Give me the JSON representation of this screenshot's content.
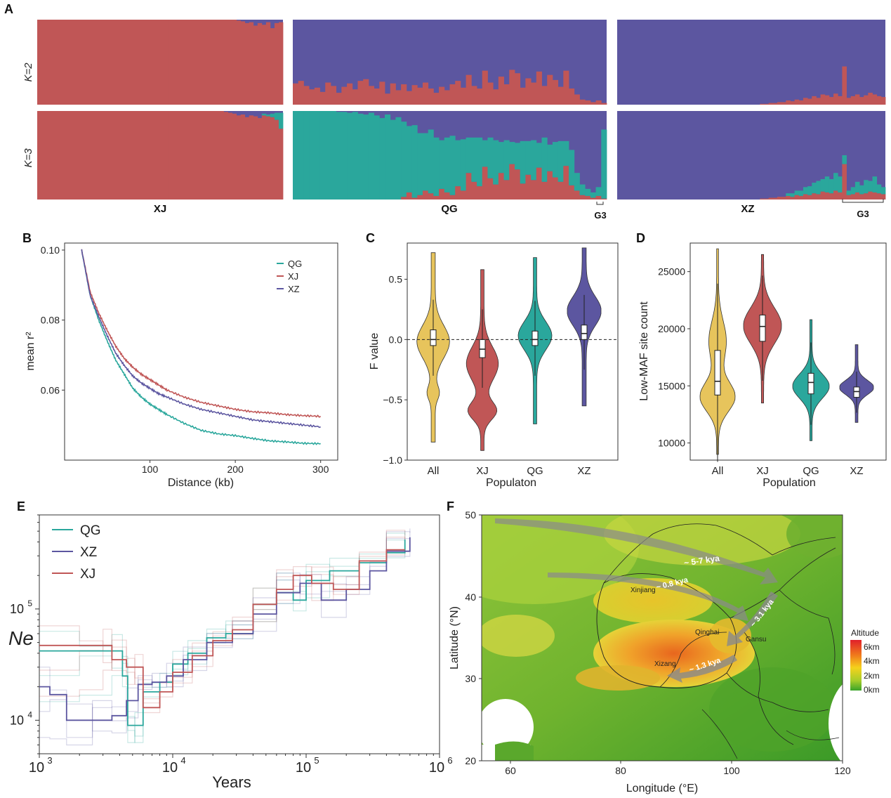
{
  "panels": {
    "A": {
      "letter": "A",
      "row_labels": [
        "K=2",
        "K=3"
      ],
      "pop_labels": [
        "XJ",
        "QG",
        "XZ"
      ],
      "sub_labels": [
        "G3",
        "G3"
      ],
      "colors": {
        "red": "#c05656",
        "blue": "#5c56a0",
        "teal": "#2aa79c"
      },
      "n_individuals": [
        58,
        58,
        62
      ],
      "k2_red_fraction": {
        "XJ": [
          1,
          1,
          1,
          1,
          1,
          1,
          1,
          1,
          1,
          1,
          1,
          1,
          1,
          1,
          1,
          1,
          1,
          1,
          1,
          1,
          1,
          1,
          1,
          1,
          1,
          1,
          1,
          1,
          1,
          1,
          1,
          1,
          1,
          1,
          1,
          1,
          1,
          1,
          1,
          1,
          1,
          1,
          1,
          1,
          1,
          1,
          1,
          0.99,
          0.98,
          0.96,
          0.97,
          0.93,
          0.96,
          0.94,
          0.97,
          0.9,
          0.96,
          0.97
        ],
        "QG": [
          0.25,
          0.28,
          0.22,
          0.18,
          0.2,
          0.15,
          0.26,
          0.22,
          0.14,
          0.21,
          0.25,
          0.18,
          0.28,
          0.3,
          0.22,
          0.19,
          0.27,
          0.13,
          0.25,
          0.17,
          0.24,
          0.16,
          0.23,
          0.2,
          0.26,
          0.19,
          0.14,
          0.21,
          0.17,
          0.24,
          0.28,
          0.2,
          0.35,
          0.22,
          0.19,
          0.4,
          0.26,
          0.18,
          0.33,
          0.24,
          0.41,
          0.37,
          0.2,
          0.31,
          0.26,
          0.39,
          0.22,
          0.35,
          0.29,
          0.21,
          0.4,
          0.19,
          0.12,
          0.06,
          0.05,
          0.03,
          0.05,
          0.02
        ],
        "XZ": [
          0,
          0,
          0,
          0,
          0,
          0,
          0,
          0,
          0,
          0,
          0,
          0,
          0,
          0,
          0,
          0,
          0,
          0,
          0,
          0,
          0,
          0,
          0,
          0,
          0,
          0,
          0,
          0,
          0,
          0,
          0,
          0,
          0,
          0.01,
          0.01,
          0.02,
          0.02,
          0.03,
          0.03,
          0.05,
          0.04,
          0.06,
          0.05,
          0.08,
          0.07,
          0.1,
          0.08,
          0.12,
          0.11,
          0.09,
          0.13,
          0.1,
          0.45,
          0.08,
          0.1,
          0.12,
          0.09,
          0.11,
          0.14,
          0.12,
          0.1,
          0.09
        ]
      },
      "k3_fractions": {
        "XJ": {
          "red": [
            1,
            1,
            1,
            1,
            1,
            1,
            1,
            1,
            1,
            1,
            1,
            1,
            1,
            1,
            1,
            1,
            1,
            1,
            1,
            1,
            1,
            1,
            1,
            1,
            1,
            1,
            1,
            1,
            1,
            1,
            1,
            1,
            1,
            1,
            1,
            1,
            1,
            1,
            1,
            1,
            1,
            1,
            1,
            1,
            0.99,
            0.98,
            0.97,
            0.95,
            0.96,
            0.93,
            0.95,
            0.94,
            0.92,
            0.95,
            0.94,
            0.93,
            0.9,
            0.8
          ],
          "teal": [
            0,
            0,
            0,
            0,
            0,
            0,
            0,
            0,
            0,
            0,
            0,
            0,
            0,
            0,
            0,
            0,
            0,
            0,
            0,
            0,
            0,
            0,
            0,
            0,
            0,
            0,
            0,
            0,
            0,
            0,
            0,
            0,
            0,
            0,
            0,
            0,
            0,
            0,
            0,
            0,
            0,
            0,
            0,
            0,
            0,
            0,
            0,
            0,
            0,
            0,
            0,
            0,
            0,
            0.02,
            0.02,
            0.04,
            0.08,
            0.18
          ]
        },
        "QG": {
          "red": [
            0,
            0,
            0,
            0,
            0,
            0,
            0,
            0,
            0,
            0,
            0,
            0,
            0,
            0,
            0,
            0,
            0,
            0,
            0,
            0,
            0.03,
            0.08,
            0.02,
            0.05,
            0.1,
            0.07,
            0.04,
            0.12,
            0.08,
            0.05,
            0.15,
            0.1,
            0.3,
            0.2,
            0.15,
            0.37,
            0.24,
            0.17,
            0.3,
            0.22,
            0.4,
            0.34,
            0.18,
            0.28,
            0.22,
            0.36,
            0.2,
            0.32,
            0.25,
            0.2,
            0.38,
            0.16,
            0.1,
            0.05,
            0.04,
            0.02,
            0.04,
            0.01
          ],
          "teal": [
            1,
            1,
            1,
            1,
            1,
            1,
            1,
            1,
            0.99,
            0.99,
            0.98,
            0.99,
            0.97,
            0.96,
            0.98,
            0.95,
            0.92,
            0.96,
            0.9,
            0.93,
            0.85,
            0.75,
            0.82,
            0.7,
            0.65,
            0.72,
            0.66,
            0.55,
            0.62,
            0.67,
            0.52,
            0.58,
            0.4,
            0.5,
            0.55,
            0.3,
            0.46,
            0.5,
            0.35,
            0.45,
            0.25,
            0.3,
            0.48,
            0.38,
            0.45,
            0.28,
            0.5,
            0.3,
            0.4,
            0.46,
            0.28,
            0.4,
            0.2,
            0.12,
            0.08,
            0.06,
            0.1,
            0.78
          ]
        },
        "XZ": {
          "red": [
            0,
            0,
            0,
            0,
            0,
            0,
            0,
            0,
            0,
            0,
            0,
            0,
            0,
            0,
            0,
            0,
            0,
            0,
            0,
            0,
            0,
            0,
            0,
            0,
            0,
            0,
            0,
            0,
            0,
            0,
            0,
            0,
            0,
            0.01,
            0.01,
            0.02,
            0.02,
            0.03,
            0.03,
            0.04,
            0.03,
            0.05,
            0.04,
            0.06,
            0.05,
            0.07,
            0.06,
            0.09,
            0.08,
            0.07,
            0.1,
            0.08,
            0.4,
            0.05,
            0.06,
            0.08,
            0.06,
            0.07,
            0.09,
            0.08,
            0.07,
            0.06
          ],
          "teal": [
            0,
            0,
            0,
            0,
            0,
            0,
            0,
            0,
            0,
            0,
            0,
            0,
            0,
            0,
            0,
            0,
            0,
            0,
            0,
            0,
            0,
            0,
            0,
            0,
            0,
            0,
            0,
            0,
            0,
            0,
            0,
            0,
            0,
            0,
            0,
            0,
            0,
            0,
            0,
            0.03,
            0.04,
            0.05,
            0.06,
            0.08,
            0.1,
            0.12,
            0.15,
            0.14,
            0.18,
            0.16,
            0.2,
            0.18,
            0.1,
            0.05,
            0.08,
            0.12,
            0.1,
            0.15,
            0.12,
            0.18,
            0.1,
            0.08
          ]
        }
      }
    },
    "B": {
      "letter": "B",
      "chart_data": {
        "type": "line",
        "xlabel": "Distance (kb)",
        "ylabel": "mean r²",
        "xticks": [
          100,
          200,
          300
        ],
        "yticks": [
          0.06,
          0.08,
          0.1
        ],
        "xlim": [
          0,
          320
        ],
        "ylim": [
          0.04,
          0.102
        ],
        "legend": "top-right",
        "series": [
          {
            "name": "QG",
            "color": "#2aa79c",
            "x": [
              20,
              30,
              40,
              50,
              60,
              70,
              80,
              90,
              100,
              110,
              120,
              140,
              160,
              180,
              200,
              220,
              240,
              260,
              280,
              300
            ],
            "y": [
              0.1,
              0.087,
              0.08,
              0.074,
              0.0685,
              0.0645,
              0.0605,
              0.058,
              0.056,
              0.0545,
              0.053,
              0.0505,
              0.0485,
              0.0475,
              0.047,
              0.0462,
              0.0455,
              0.0452,
              0.0448,
              0.0447
            ]
          },
          {
            "name": "XJ",
            "color": "#c05656",
            "x": [
              20,
              30,
              40,
              50,
              60,
              70,
              80,
              90,
              100,
              110,
              120,
              140,
              160,
              180,
              200,
              220,
              240,
              260,
              280,
              300
            ],
            "y": [
              0.1,
              0.088,
              0.082,
              0.077,
              0.0725,
              0.069,
              0.0665,
              0.0645,
              0.063,
              0.0615,
              0.06,
              0.058,
              0.0565,
              0.0555,
              0.0545,
              0.0538,
              0.0535,
              0.053,
              0.0527,
              0.0525
            ]
          },
          {
            "name": "XZ",
            "color": "#5c56a0",
            "x": [
              20,
              30,
              40,
              50,
              60,
              70,
              80,
              90,
              100,
              110,
              120,
              140,
              160,
              180,
              200,
              220,
              240,
              260,
              280,
              300
            ],
            "y": [
              0.1,
              0.087,
              0.081,
              0.0755,
              0.0705,
              0.067,
              0.064,
              0.062,
              0.0605,
              0.059,
              0.058,
              0.056,
              0.0545,
              0.0535,
              0.0525,
              0.0515,
              0.051,
              0.0505,
              0.05,
              0.0495
            ]
          }
        ]
      }
    },
    "C": {
      "letter": "C",
      "chart_data": {
        "type": "violin",
        "xlabel": "Populaton",
        "ylabel": "F value",
        "categories": [
          "All",
          "XJ",
          "QG",
          "XZ"
        ],
        "yticks": [
          -1.0,
          -0.5,
          0.0,
          0.5
        ],
        "ytick_labels": [
          "−1.0",
          "−0.5",
          "0.0",
          "0.5"
        ],
        "ylim": [
          -1.0,
          0.8
        ],
        "reference_line": 0.0,
        "colors": [
          "#e7c45c",
          "#c05656",
          "#2aa79c",
          "#5c56a0"
        ],
        "box": [
          {
            "q1": -0.05,
            "median": 0.0,
            "q3": 0.08
          },
          {
            "q1": -0.15,
            "median": -0.08,
            "q3": 0.0
          },
          {
            "q1": -0.05,
            "median": 0.0,
            "q3": 0.07
          },
          {
            "q1": 0.0,
            "median": 0.05,
            "q3": 0.12
          }
        ]
      }
    },
    "D": {
      "letter": "D",
      "chart_data": {
        "type": "violin",
        "xlabel": "Population",
        "ylabel": "Low-MAF site count",
        "categories": [
          "All",
          "XJ",
          "QG",
          "XZ"
        ],
        "yticks": [
          10000,
          15000,
          20000,
          25000
        ],
        "ylim": [
          8500,
          27500
        ],
        "colors": [
          "#e7c45c",
          "#c05656",
          "#2aa79c",
          "#5c56a0"
        ],
        "box": [
          {
            "q1": 14200,
            "median": 15400,
            "q3": 18100
          },
          {
            "q1": 18900,
            "median": 20200,
            "q3": 21200
          },
          {
            "q1": 14300,
            "median": 15300,
            "q3": 16100
          },
          {
            "q1": 14000,
            "median": 14500,
            "q3": 14900
          }
        ]
      }
    },
    "E": {
      "letter": "E",
      "chart_data": {
        "type": "line",
        "xlabel": "Years",
        "ylabel": "Ne",
        "xscale": "log",
        "yscale": "log",
        "xlim": [
          1000,
          1000000
        ],
        "ylim": [
          5000,
          700000
        ],
        "xtick_bases": [
          "10",
          "10",
          "10",
          "10"
        ],
        "xtick_exps": [
          "3",
          "4",
          "5",
          "6"
        ],
        "ytick_bases": [
          "10",
          "10"
        ],
        "ytick_exps": [
          "4",
          "5"
        ],
        "legend": "top-left",
        "series": [
          {
            "name": "QG",
            "color": "#2aa79c",
            "x": [
              1000,
              2000,
              3500,
              4200,
              4600,
              5200,
              6000,
              8000,
              10000,
              13000,
              18000,
              25000,
              40000,
              60000,
              80000,
              100000,
              150000,
              250000,
              400000,
              550000
            ],
            "y": [
              42000,
              42000,
              42000,
              25000,
              9000,
              9000,
              18000,
              22000,
              32000,
              40000,
              55000,
              60000,
              110000,
              140000,
              120000,
              180000,
              220000,
              260000,
              320000,
              420000
            ]
          },
          {
            "name": "XZ",
            "color": "#5c56a0",
            "x": [
              1000,
              1200,
              1600,
              2500,
              3500,
              4500,
              5500,
              7000,
              9000,
              12000,
              18000,
              28000,
              40000,
              60000,
              90000,
              130000,
              200000,
              300000,
              400000,
              600000
            ],
            "y": [
              20000,
              17000,
              10000,
              10000,
              11000,
              15000,
              21000,
              22000,
              25000,
              35000,
              50000,
              60000,
              90000,
              140000,
              170000,
              120000,
              150000,
              220000,
              330000,
              440000
            ]
          },
          {
            "name": "XJ",
            "color": "#c05656",
            "x": [
              1000,
              2000,
              3000,
              3500,
              4500,
              5200,
              6000,
              8000,
              10000,
              14000,
              20000,
              28000,
              40000,
              60000,
              80000,
              110000,
              160000,
              250000,
              400000,
              550000
            ],
            "y": [
              47000,
              47000,
              47000,
              35000,
              30000,
              30000,
              13000,
              18000,
              27000,
              38000,
              52000,
              65000,
              110000,
              150000,
              200000,
              170000,
              150000,
              270000,
              340000,
              340000
            ]
          }
        ]
      }
    },
    "F": {
      "letter": "F",
      "xlabel": "Longitude (°E)",
      "ylabel": "Latitude (°N)",
      "xticks": [
        "60",
        "80",
        "100",
        "120"
      ],
      "yticks": [
        "20",
        "30",
        "40",
        "50"
      ],
      "places": [
        "Xinjiang",
        "Qinghai",
        "Gansu",
        "Xizang"
      ],
      "arrows": [
        "~ 5-7 kya",
        "~ 0.8 kya",
        "~ 3.1 kya",
        "~ 1.3 kya"
      ],
      "legend_title": "Altitude",
      "legend_labels": [
        "6km",
        "4km",
        "2km",
        "0km"
      ]
    }
  }
}
